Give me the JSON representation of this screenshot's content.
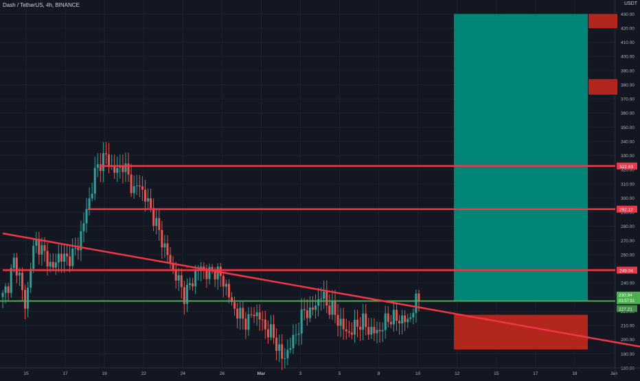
{
  "header": {
    "title": "Dash / TetherUS, 4h, BINANCE",
    "unit": "USDT"
  },
  "colors": {
    "background": "#131722",
    "grid": "#1e222d",
    "up": "#26a69a",
    "down": "#ef5350",
    "text": "#b2b5be",
    "resistance": "#f23645",
    "support": "#4caf50",
    "trendline": "#f23645",
    "target_zone": "#008577",
    "stop_zone": "#b3261e"
  },
  "chart_data": {
    "type": "candlestick",
    "symbol": "Dash / TetherUS",
    "interval": "4h",
    "exchange": "BINANCE",
    "ylim": [
      178,
      436
    ],
    "y_ticks": [
      180,
      190,
      200,
      210,
      220,
      230,
      240,
      250,
      260,
      270,
      280,
      290,
      300,
      310,
      320,
      330,
      340,
      350,
      360,
      370,
      380,
      390,
      400,
      410,
      420,
      430
    ],
    "x_ticks": [
      "15",
      "17",
      "19",
      "22",
      "24",
      "26",
      "Mar",
      "3",
      "5",
      "8",
      "10",
      "12",
      "15",
      "17",
      "19",
      "Jan"
    ],
    "resistance_lines": [
      {
        "price": 322.63,
        "label": "322.63"
      },
      {
        "price": 292.12,
        "label": "292.12"
      },
      {
        "price": 249.04,
        "label": "249.04"
      }
    ],
    "support_line": {
      "price": 227.21,
      "label": "227.21"
    },
    "last_price": {
      "price": 230.94,
      "label": "230.94",
      "timer": "03:57:51"
    },
    "trendline": {
      "start_price": 275,
      "end_price": 195
    },
    "position": {
      "entry": 227.21,
      "target": 430,
      "stop": 193
    },
    "scale_markers": [
      {
        "from": 420,
        "to": 430
      },
      {
        "from": 373,
        "to": 384
      }
    ],
    "path_points": [
      230,
      240,
      255,
      245,
      220,
      258,
      270,
      262,
      255,
      250,
      262,
      255,
      260,
      263,
      280,
      295,
      315,
      325,
      330,
      322,
      318,
      325,
      315,
      305,
      310,
      300,
      292,
      280,
      270,
      258,
      248,
      240,
      230,
      240,
      248,
      252,
      245,
      250,
      245,
      240,
      226,
      220,
      215,
      212,
      220,
      216,
      208,
      205,
      198,
      186,
      192,
      200,
      210,
      222,
      218,
      226,
      232,
      224,
      220,
      213,
      206,
      205,
      210,
      213,
      208,
      205,
      206,
      212,
      216,
      214,
      215,
      212,
      222,
      230
    ]
  }
}
